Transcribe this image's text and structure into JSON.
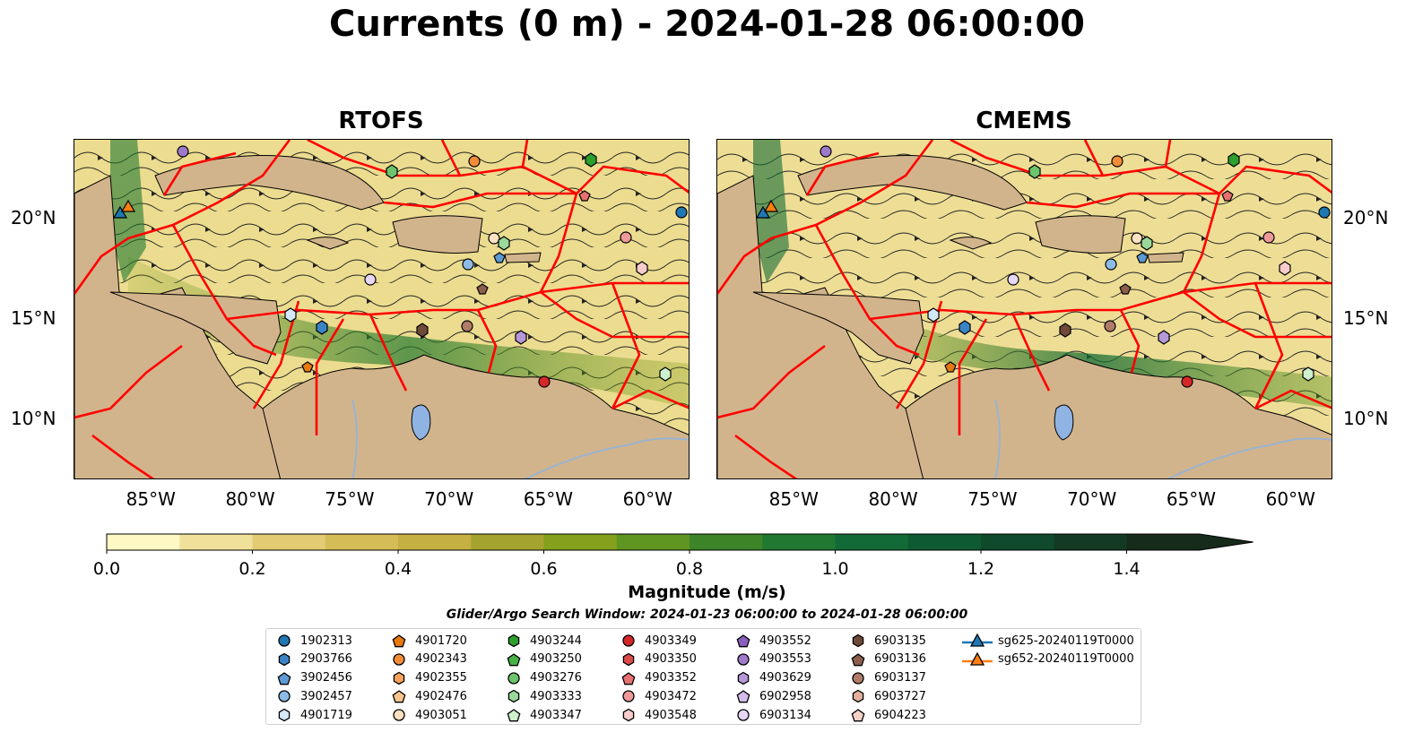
{
  "title": "Currents (0 m) - 2024-01-28 06:00:00",
  "panels": [
    {
      "title": "RTOFS"
    },
    {
      "title": "CMEMS"
    }
  ],
  "map_axes": {
    "lon_range": [
      -89,
      -58
    ],
    "lat_range": [
      7,
      24
    ],
    "lon_ticks": [
      "85°W",
      "80°W",
      "75°W",
      "70°W",
      "65°W",
      "60°W"
    ],
    "lat_ticks": [
      "20°N",
      "15°N",
      "10°N"
    ],
    "lon_tick_values": [
      -85,
      -80,
      -75,
      -70,
      -65,
      -60
    ],
    "lat_tick_values": [
      20,
      15,
      10
    ]
  },
  "colorbar": {
    "label": "Magnitude (m/s)",
    "range": [
      0,
      1.5
    ],
    "extend": "max",
    "ticks": [
      "0.0",
      "0.2",
      "0.4",
      "0.6",
      "0.8",
      "1.0",
      "1.2",
      "1.4"
    ],
    "tick_values": [
      0,
      0.2,
      0.4,
      0.6,
      0.8,
      1.0,
      1.2,
      1.4
    ],
    "colors": [
      "#fdf8c4",
      "#f0e19a",
      "#e2cb73",
      "#d5bc57",
      "#c5b042",
      "#a4a330",
      "#84a01c",
      "#5f9521",
      "#3d8428",
      "#217830",
      "#126a36",
      "#0e5a32",
      "#0f4a2c",
      "#123a25",
      "#172b1d"
    ]
  },
  "search_window": "Glider/Argo Search Window: 2024-01-23 06:00:00 to 2024-01-28 06:00:00",
  "colors": {
    "land": "#d2b48c",
    "eez_lines": "#ff0000",
    "lake": "#8fb3e3",
    "river": "#9ab3d0"
  },
  "legend": [
    {
      "label": "1902313",
      "marker": "circle",
      "color": "#1f77b4"
    },
    {
      "label": "2903766",
      "marker": "hexagon",
      "color": "#3a84c6"
    },
    {
      "label": "3902456",
      "marker": "pentagon",
      "color": "#5d9ad3"
    },
    {
      "label": "3902457",
      "marker": "circle",
      "color": "#8cbce6"
    },
    {
      "label": "4901719",
      "marker": "hexagon",
      "color": "#d3e8f8"
    },
    {
      "label": "4901720",
      "marker": "pentagon",
      "color": "#e6790f"
    },
    {
      "label": "4902343",
      "marker": "circle",
      "color": "#f28c38"
    },
    {
      "label": "4902355",
      "marker": "hexagon",
      "color": "#f7a35d"
    },
    {
      "label": "4902476",
      "marker": "pentagon",
      "color": "#fbc48c"
    },
    {
      "label": "4903051",
      "marker": "circle",
      "color": "#fde2c2"
    },
    {
      "label": "4903244",
      "marker": "hexagon",
      "color": "#2ca02c"
    },
    {
      "label": "4903250",
      "marker": "pentagon",
      "color": "#47b047"
    },
    {
      "label": "4903276",
      "marker": "circle",
      "color": "#6cc46c"
    },
    {
      "label": "4903333",
      "marker": "hexagon",
      "color": "#9bd89b"
    },
    {
      "label": "4903347",
      "marker": "pentagon",
      "color": "#cdf0cd"
    },
    {
      "label": "4903349",
      "marker": "circle",
      "color": "#d62728"
    },
    {
      "label": "4903350",
      "marker": "hexagon",
      "color": "#dd4a4a"
    },
    {
      "label": "4903352",
      "marker": "pentagon",
      "color": "#e57070"
    },
    {
      "label": "4903472",
      "marker": "circle",
      "color": "#ee9a9a"
    },
    {
      "label": "4903548",
      "marker": "hexagon",
      "color": "#f8cccc"
    },
    {
      "label": "4903552",
      "marker": "pentagon",
      "color": "#8b5fbf"
    },
    {
      "label": "4903553",
      "marker": "circle",
      "color": "#9f7acb"
    },
    {
      "label": "4903629",
      "marker": "hexagon",
      "color": "#b598d8"
    },
    {
      "label": "6902958",
      "marker": "pentagon",
      "color": "#d2bde8"
    },
    {
      "label": "6903134",
      "marker": "circle",
      "color": "#e6d8f4"
    },
    {
      "label": "6903135",
      "marker": "hexagon",
      "color": "#6f4a3a"
    },
    {
      "label": "6903136",
      "marker": "pentagon",
      "color": "#8c5e4c"
    },
    {
      "label": "6903137",
      "marker": "circle",
      "color": "#b07b68"
    },
    {
      "label": "6903727",
      "marker": "hexagon",
      "color": "#e3b09c"
    },
    {
      "label": "6904223",
      "marker": "pentagon",
      "color": "#f5d2c6"
    },
    {
      "label": "sg625-20240119T0000",
      "marker": "triangle",
      "color": "#1f77b4"
    },
    {
      "label": "sg652-20240119T0000",
      "marker": "triangle",
      "color": "#ff7f0e"
    }
  ]
}
